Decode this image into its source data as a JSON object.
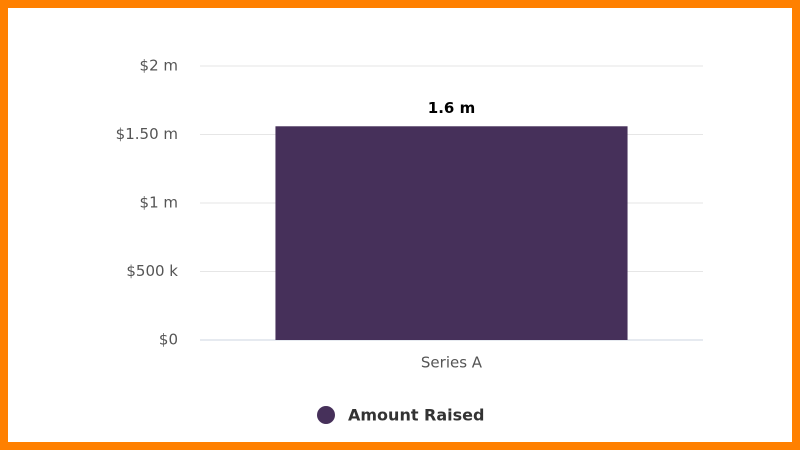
{
  "chart_data": {
    "type": "bar",
    "categories": [
      "Series A"
    ],
    "series": [
      {
        "name": "Amount Raised",
        "color": "#46305a",
        "values": [
          1560000
        ],
        "value_labels": [
          "1.6 m"
        ]
      }
    ],
    "ylim": [
      0,
      2000000
    ],
    "yticks": [
      {
        "value": 0,
        "label": "$0"
      },
      {
        "value": 500000,
        "label": "$500 k"
      },
      {
        "value": 1000000,
        "label": "$1 m"
      },
      {
        "value": 1500000,
        "label": "$1.50 m"
      },
      {
        "value": 2000000,
        "label": "$2 m"
      }
    ],
    "grid": true
  }
}
